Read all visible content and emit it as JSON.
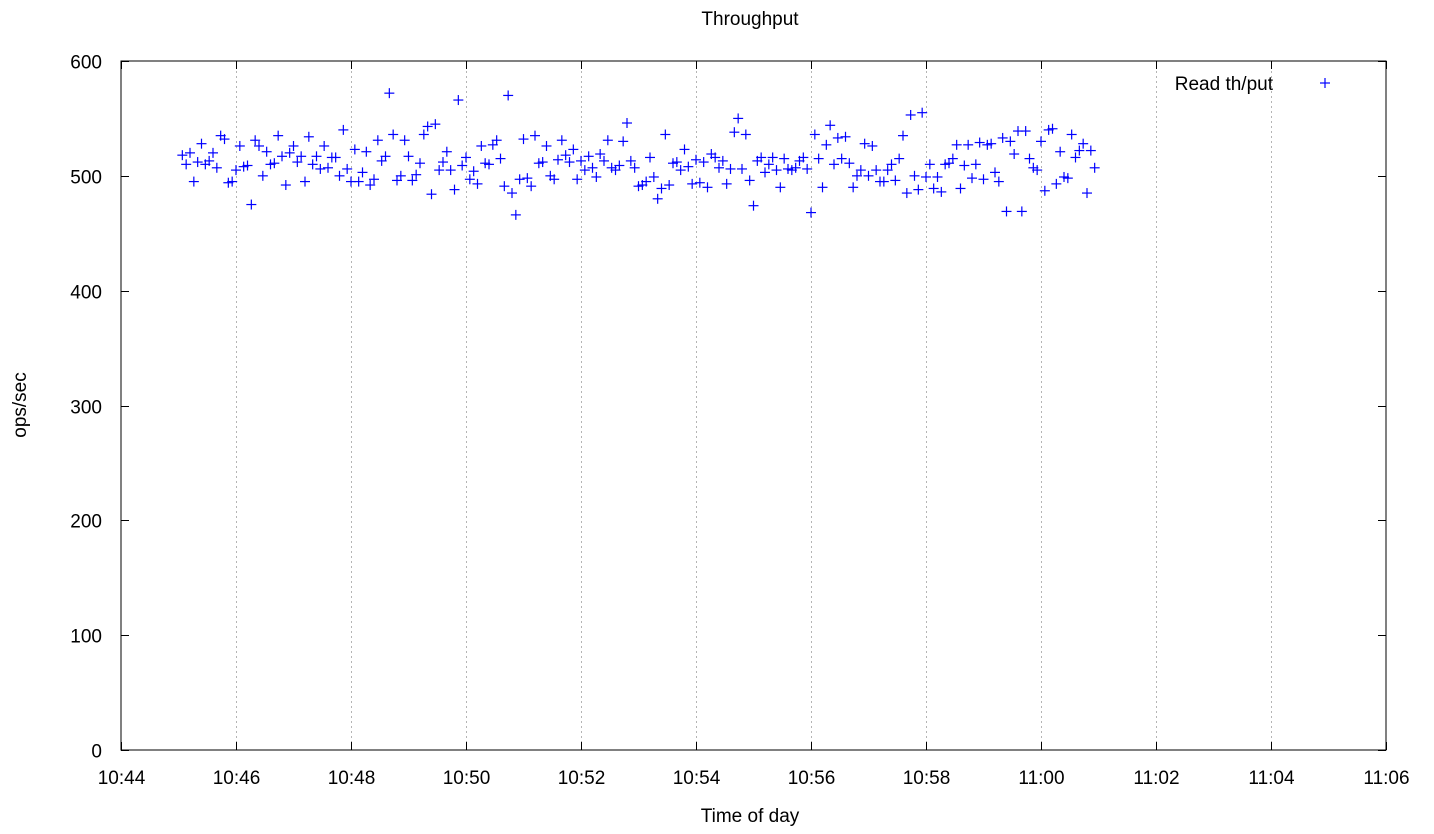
{
  "chart_data": {
    "type": "scatter",
    "title": "Throughput",
    "xlabel": "Time of day",
    "ylabel": "ops/sec",
    "xlim": [
      "10:44",
      "11:06"
    ],
    "ylim": [
      0,
      600
    ],
    "x_ticks": [
      "10:44",
      "10:46",
      "10:48",
      "10:50",
      "10:52",
      "10:54",
      "10:56",
      "10:58",
      "11:00",
      "11:02",
      "11:04",
      "11:06"
    ],
    "y_ticks": [
      0,
      100,
      200,
      300,
      400,
      500,
      600
    ],
    "grid": "vertical dashed lines at each x tick",
    "legend_position": "top-right",
    "marker": "+",
    "series": [
      {
        "name": "Read th/put",
        "color": "#0000ff",
        "points": [
          [
            "10:45:04",
            518
          ],
          [
            "10:45:08",
            510
          ],
          [
            "10:45:12",
            520
          ],
          [
            "10:45:16",
            495
          ],
          [
            "10:45:20",
            512
          ],
          [
            "10:45:24",
            528
          ],
          [
            "10:45:28",
            510
          ],
          [
            "10:45:32",
            513
          ],
          [
            "10:45:36",
            520
          ],
          [
            "10:45:40",
            507
          ],
          [
            "10:45:44",
            535
          ],
          [
            "10:45:48",
            532
          ],
          [
            "10:45:52",
            494
          ],
          [
            "10:45:56",
            495
          ],
          [
            "10:46:00",
            505
          ],
          [
            "10:46:04",
            526
          ],
          [
            "10:46:08",
            508
          ],
          [
            "10:46:12",
            509
          ],
          [
            "10:46:16",
            475
          ],
          [
            "10:46:20",
            531
          ],
          [
            "10:46:24",
            526
          ],
          [
            "10:46:28",
            500
          ],
          [
            "10:46:32",
            521
          ],
          [
            "10:46:36",
            510
          ],
          [
            "10:46:40",
            511
          ],
          [
            "10:46:44",
            535
          ],
          [
            "10:46:48",
            517
          ],
          [
            "10:46:52",
            492
          ],
          [
            "10:46:56",
            520
          ],
          [
            "10:47:00",
            526
          ],
          [
            "10:47:04",
            512
          ],
          [
            "10:47:08",
            517
          ],
          [
            "10:47:12",
            495
          ],
          [
            "10:47:16",
            534
          ],
          [
            "10:47:20",
            510
          ],
          [
            "10:47:24",
            517
          ],
          [
            "10:47:28",
            506
          ],
          [
            "10:47:32",
            526
          ],
          [
            "10:47:36",
            507
          ],
          [
            "10:47:40",
            516
          ],
          [
            "10:47:44",
            516
          ],
          [
            "10:47:48",
            500
          ],
          [
            "10:47:52",
            540
          ],
          [
            "10:47:56",
            506
          ],
          [
            "10:48:00",
            495
          ],
          [
            "10:48:04",
            523
          ],
          [
            "10:48:08",
            495
          ],
          [
            "10:48:12",
            503
          ],
          [
            "10:48:16",
            521
          ],
          [
            "10:48:20",
            492
          ],
          [
            "10:48:24",
            497
          ],
          [
            "10:48:28",
            531
          ],
          [
            "10:48:32",
            513
          ],
          [
            "10:48:36",
            517
          ],
          [
            "10:48:40",
            572
          ],
          [
            "10:48:44",
            536
          ],
          [
            "10:48:48",
            496
          ],
          [
            "10:48:52",
            500
          ],
          [
            "10:48:56",
            531
          ],
          [
            "10:49:00",
            517
          ],
          [
            "10:49:04",
            496
          ],
          [
            "10:49:08",
            501
          ],
          [
            "10:49:12",
            511
          ],
          [
            "10:49:16",
            536
          ],
          [
            "10:49:20",
            543
          ],
          [
            "10:49:24",
            484
          ],
          [
            "10:49:28",
            545
          ],
          [
            "10:49:32",
            505
          ],
          [
            "10:49:36",
            512
          ],
          [
            "10:49:40",
            521
          ],
          [
            "10:49:44",
            505
          ],
          [
            "10:49:48",
            488
          ],
          [
            "10:49:52",
            566
          ],
          [
            "10:49:56",
            509
          ],
          [
            "10:50:00",
            516
          ],
          [
            "10:50:04",
            497
          ],
          [
            "10:50:08",
            504
          ],
          [
            "10:50:12",
            493
          ],
          [
            "10:50:16",
            526
          ],
          [
            "10:50:20",
            511
          ],
          [
            "10:50:24",
            510
          ],
          [
            "10:50:28",
            527
          ],
          [
            "10:50:32",
            531
          ],
          [
            "10:50:36",
            515
          ],
          [
            "10:50:40",
            491
          ],
          [
            "10:50:44",
            570
          ],
          [
            "10:50:48",
            485
          ],
          [
            "10:50:52",
            466
          ],
          [
            "10:50:56",
            497
          ],
          [
            "10:51:00",
            532
          ],
          [
            "10:51:04",
            498
          ],
          [
            "10:51:08",
            491
          ],
          [
            "10:51:12",
            535
          ],
          [
            "10:51:16",
            511
          ],
          [
            "10:51:20",
            512
          ],
          [
            "10:51:24",
            526
          ],
          [
            "10:51:28",
            500
          ],
          [
            "10:51:32",
            497
          ],
          [
            "10:51:36",
            514
          ],
          [
            "10:51:40",
            531
          ],
          [
            "10:51:44",
            518
          ],
          [
            "10:51:48",
            512
          ],
          [
            "10:51:52",
            523
          ],
          [
            "10:51:56",
            497
          ],
          [
            "10:52:00",
            513
          ],
          [
            "10:52:04",
            505
          ],
          [
            "10:52:08",
            517
          ],
          [
            "10:52:12",
            507
          ],
          [
            "10:52:16",
            499
          ],
          [
            "10:52:20",
            519
          ],
          [
            "10:52:24",
            513
          ],
          [
            "10:52:28",
            531
          ],
          [
            "10:52:32",
            507
          ],
          [
            "10:52:36",
            505
          ],
          [
            "10:52:40",
            509
          ],
          [
            "10:52:44",
            530
          ],
          [
            "10:52:48",
            546
          ],
          [
            "10:52:52",
            513
          ],
          [
            "10:52:56",
            507
          ],
          [
            "10:53:00",
            491
          ],
          [
            "10:53:04",
            492
          ],
          [
            "10:53:08",
            495
          ],
          [
            "10:53:12",
            516
          ],
          [
            "10:53:16",
            499
          ],
          [
            "10:53:20",
            480
          ],
          [
            "10:53:24",
            489
          ],
          [
            "10:53:28",
            536
          ],
          [
            "10:53:32",
            492
          ],
          [
            "10:53:36",
            511
          ],
          [
            "10:53:40",
            512
          ],
          [
            "10:53:44",
            505
          ],
          [
            "10:53:48",
            523
          ],
          [
            "10:53:52",
            508
          ],
          [
            "10:53:56",
            493
          ],
          [
            "10:54:00",
            514
          ],
          [
            "10:54:04",
            494
          ],
          [
            "10:54:08",
            512
          ],
          [
            "10:54:12",
            490
          ],
          [
            "10:54:16",
            519
          ],
          [
            "10:54:20",
            516
          ],
          [
            "10:54:24",
            507
          ],
          [
            "10:54:28",
            513
          ],
          [
            "10:54:32",
            493
          ],
          [
            "10:54:36",
            506
          ],
          [
            "10:54:40",
            538
          ],
          [
            "10:54:44",
            550
          ],
          [
            "10:54:48",
            506
          ],
          [
            "10:54:52",
            536
          ],
          [
            "10:54:56",
            496
          ],
          [
            "10:55:00",
            474
          ],
          [
            "10:55:04",
            513
          ],
          [
            "10:55:08",
            516
          ],
          [
            "10:55:12",
            503
          ],
          [
            "10:55:16",
            510
          ],
          [
            "10:55:20",
            516
          ],
          [
            "10:55:24",
            505
          ],
          [
            "10:55:28",
            490
          ],
          [
            "10:55:32",
            515
          ],
          [
            "10:55:36",
            506
          ],
          [
            "10:55:40",
            505
          ],
          [
            "10:55:44",
            507
          ],
          [
            "10:55:48",
            513
          ],
          [
            "10:55:52",
            516
          ],
          [
            "10:55:56",
            506
          ],
          [
            "10:56:00",
            468
          ],
          [
            "10:56:04",
            536
          ],
          [
            "10:56:08",
            515
          ],
          [
            "10:56:12",
            490
          ],
          [
            "10:56:16",
            527
          ],
          [
            "10:56:20",
            544
          ],
          [
            "10:56:24",
            510
          ],
          [
            "10:56:28",
            533
          ],
          [
            "10:56:32",
            515
          ],
          [
            "10:56:36",
            534
          ],
          [
            "10:56:40",
            511
          ],
          [
            "10:56:44",
            490
          ],
          [
            "10:56:48",
            500
          ],
          [
            "10:56:52",
            505
          ],
          [
            "10:56:56",
            528
          ],
          [
            "10:57:00",
            500
          ],
          [
            "10:57:04",
            526
          ],
          [
            "10:57:08",
            505
          ],
          [
            "10:57:12",
            495
          ],
          [
            "10:57:16",
            495
          ],
          [
            "10:57:20",
            505
          ],
          [
            "10:57:24",
            510
          ],
          [
            "10:57:28",
            496
          ],
          [
            "10:57:32",
            515
          ],
          [
            "10:57:36",
            535
          ],
          [
            "10:57:40",
            485
          ],
          [
            "10:57:44",
            553
          ],
          [
            "10:57:48",
            500
          ],
          [
            "10:57:52",
            488
          ],
          [
            "10:57:56",
            555
          ],
          [
            "10:58:00",
            499
          ],
          [
            "10:58:04",
            510
          ],
          [
            "10:58:08",
            489
          ],
          [
            "10:58:12",
            499
          ],
          [
            "10:58:16",
            486
          ],
          [
            "10:58:20",
            510
          ],
          [
            "10:58:24",
            511
          ],
          [
            "10:58:28",
            515
          ],
          [
            "10:58:32",
            527
          ],
          [
            "10:58:36",
            489
          ],
          [
            "10:58:40",
            509
          ],
          [
            "10:58:44",
            527
          ],
          [
            "10:58:48",
            498
          ],
          [
            "10:58:52",
            510
          ],
          [
            "10:58:56",
            529
          ],
          [
            "10:59:00",
            497
          ],
          [
            "10:59:04",
            527
          ],
          [
            "10:59:08",
            528
          ],
          [
            "10:59:12",
            503
          ],
          [
            "10:59:16",
            495
          ],
          [
            "10:59:20",
            533
          ],
          [
            "10:59:24",
            469
          ],
          [
            "10:59:28",
            530
          ],
          [
            "10:59:32",
            519
          ],
          [
            "10:59:36",
            539
          ],
          [
            "10:59:40",
            469
          ],
          [
            "10:59:44",
            539
          ],
          [
            "10:59:48",
            515
          ],
          [
            "10:59:52",
            507
          ],
          [
            "10:59:56",
            505
          ],
          [
            "11:00:00",
            530
          ],
          [
            "11:00:04",
            487
          ],
          [
            "11:00:08",
            540
          ],
          [
            "11:00:12",
            541
          ],
          [
            "11:00:16",
            493
          ],
          [
            "11:00:20",
            521
          ],
          [
            "11:00:24",
            499
          ],
          [
            "11:00:28",
            498
          ],
          [
            "11:00:32",
            536
          ],
          [
            "11:00:36",
            516
          ],
          [
            "11:00:40",
            522
          ],
          [
            "11:00:44",
            528
          ],
          [
            "11:00:48",
            485
          ],
          [
            "11:00:52",
            522
          ],
          [
            "11:00:56",
            507
          ]
        ]
      }
    ]
  }
}
